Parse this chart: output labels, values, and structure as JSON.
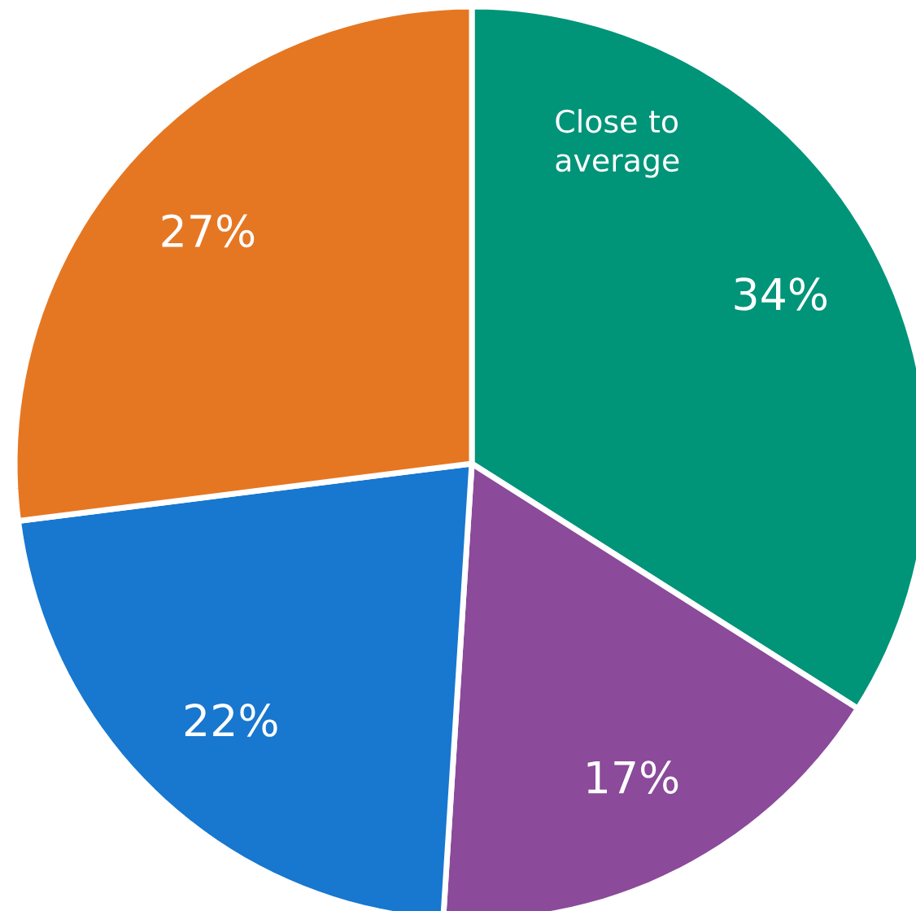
{
  "chart_data": {
    "type": "pie",
    "categories": [
      "Close to average",
      null,
      null,
      null
    ],
    "values": [
      34,
      17,
      22,
      27
    ],
    "value_labels": [
      "34%",
      "17%",
      "22%",
      "27%"
    ],
    "colors": [
      "#009479",
      "#8b4a9a",
      "#1877cf",
      "#e57723"
    ]
  }
}
